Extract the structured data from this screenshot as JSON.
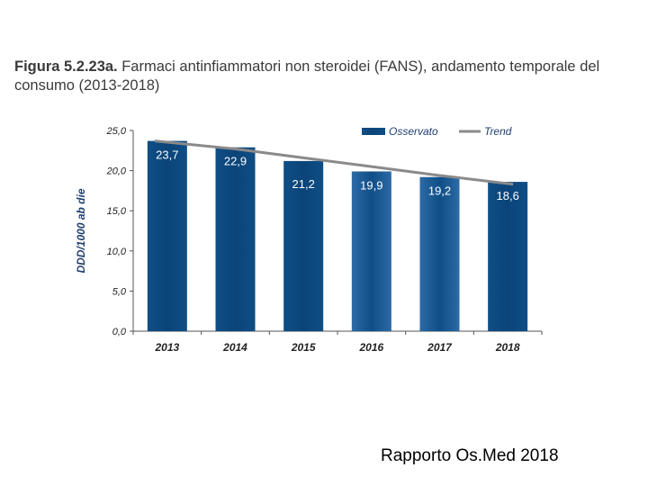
{
  "figure": {
    "title_bold": "Figura 5.2.23a.",
    "title_rest": " Farmaci antinfiammatori non steroidei (FANS), andamento temporale del consumo (2013-2018)"
  },
  "footer": "Rapporto Os.Med 2018",
  "colors": {
    "bar": "#0f4e86",
    "bar_light": "#2d6aa6",
    "trend": "#8a8a8a",
    "axis": "#555555"
  },
  "chart_data": {
    "type": "bar",
    "title": "",
    "xlabel": "",
    "ylabel": "DDD/1000 ab die",
    "categories": [
      "2013",
      "2014",
      "2015",
      "2016",
      "2017",
      "2018"
    ],
    "series": [
      {
        "name": "Osservato",
        "type": "bar",
        "values": [
          23.7,
          22.9,
          21.2,
          19.9,
          19.2,
          18.6
        ]
      },
      {
        "name": "Trend",
        "type": "line",
        "values": [
          23.7,
          22.7,
          21.6,
          20.5,
          19.4,
          18.3
        ]
      }
    ],
    "data_labels": [
      "23,7",
      "22,9",
      "21,2",
      "19,9",
      "19,2",
      "18,6"
    ],
    "ylim": [
      0,
      25
    ],
    "yticks": [
      0,
      5,
      10,
      15,
      20,
      25
    ],
    "ytick_labels": [
      "0,0",
      "5,0",
      "10,0",
      "15,0",
      "20,0",
      "25,0"
    ],
    "grid": false,
    "legend": {
      "position": "top-right",
      "entries": [
        "Osservato",
        "Trend"
      ]
    }
  }
}
